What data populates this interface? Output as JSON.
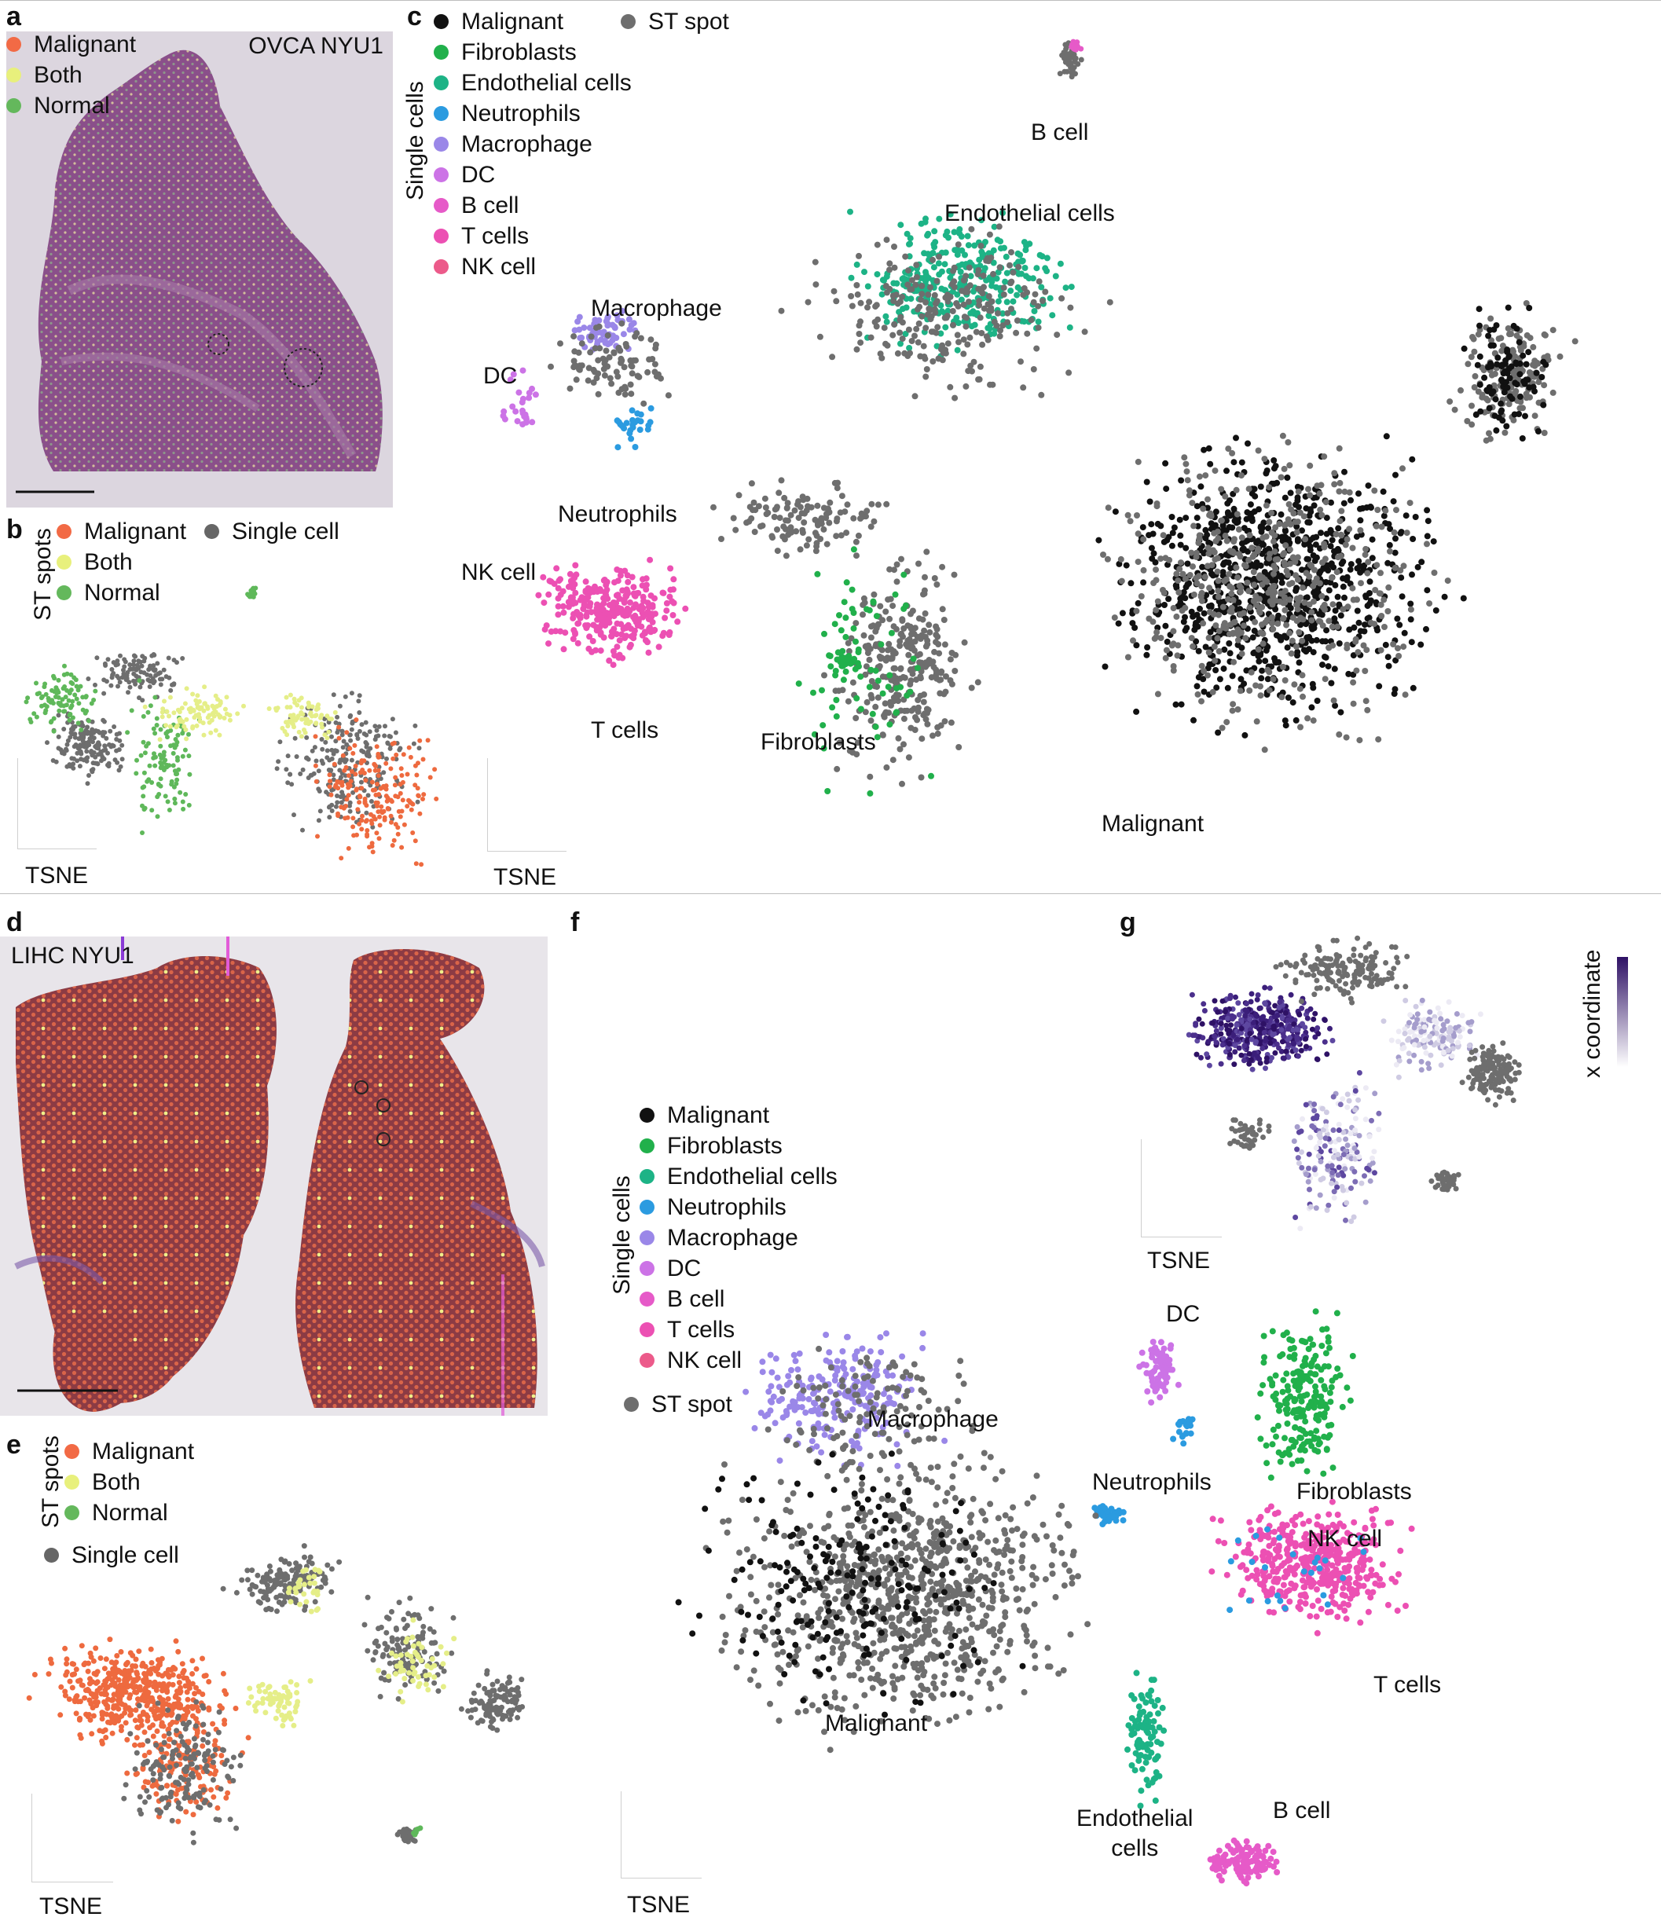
{
  "panels": {
    "a": "a",
    "b": "b",
    "c": "c",
    "d": "d",
    "e": "e",
    "f": "f",
    "g": "g"
  },
  "panel_a": {
    "sample": "OVCA NYU1",
    "legend": [
      {
        "label": "Malignant",
        "color": "#f26a45"
      },
      {
        "label": "Both",
        "color": "#e8f07c"
      },
      {
        "label": "Normal",
        "color": "#64b85c"
      }
    ]
  },
  "panel_b": {
    "group_label": "ST spots",
    "legend": [
      {
        "label": "Malignant",
        "color": "#f26a45"
      },
      {
        "label": "Both",
        "color": "#e8f07c"
      },
      {
        "label": "Normal",
        "color": "#64b85c"
      }
    ],
    "single_cell_label": "Single cell",
    "single_cell_color": "#666666",
    "axis_label": "TSNE"
  },
  "panel_c": {
    "group_label": "Single cells",
    "legend": [
      {
        "label": "Malignant",
        "color": "#111111"
      },
      {
        "label": "Fibroblasts",
        "color": "#21b04b"
      },
      {
        "label": "Endothelial cells",
        "color": "#1db386"
      },
      {
        "label": "Neutrophils",
        "color": "#2b9be0"
      },
      {
        "label": "Macrophage",
        "color": "#9a87e8"
      },
      {
        "label": "DC",
        "color": "#cc73e6"
      },
      {
        "label": "B cell",
        "color": "#e65ac8"
      },
      {
        "label": "T cells",
        "color": "#ec50b3"
      },
      {
        "label": "NK cell",
        "color": "#ec5a8a"
      }
    ],
    "st_spot_label": "ST spot",
    "st_spot_color": "#6e6e6e",
    "axis_label": "TSNE",
    "cluster_labels": {
      "b_cell": "B cell",
      "endothelial": "Endothelial cells",
      "macrophage": "Macrophage",
      "dc": "DC",
      "neutrophils": "Neutrophils",
      "nk_cell": "NK cell",
      "t_cells": "T cells",
      "fibroblasts": "Fibroblasts",
      "malignant": "Malignant"
    }
  },
  "panel_d": {
    "sample": "LIHC NYU1"
  },
  "panel_e": {
    "group_label": "ST spots",
    "legend": [
      {
        "label": "Malignant",
        "color": "#f26a45"
      },
      {
        "label": "Both",
        "color": "#e8f07c"
      },
      {
        "label": "Normal",
        "color": "#64b85c"
      }
    ],
    "single_cell_label": "Single cell",
    "single_cell_color": "#666666",
    "axis_label": "TSNE"
  },
  "panel_f": {
    "group_label": "Single cells",
    "legend": [
      {
        "label": "Malignant",
        "color": "#111111"
      },
      {
        "label": "Fibroblasts",
        "color": "#21b04b"
      },
      {
        "label": "Endothelial cells",
        "color": "#1db386"
      },
      {
        "label": "Neutrophils",
        "color": "#2b9be0"
      },
      {
        "label": "Macrophage",
        "color": "#9a87e8"
      },
      {
        "label": "DC",
        "color": "#cc73e6"
      },
      {
        "label": "B cell",
        "color": "#e65ac8"
      },
      {
        "label": "T cells",
        "color": "#ec50b3"
      },
      {
        "label": "NK cell",
        "color": "#ec5a8a"
      }
    ],
    "st_spot_label": "ST spot",
    "st_spot_color": "#6e6e6e",
    "axis_label": "TSNE",
    "cluster_labels": {
      "dc": "DC",
      "macrophage": "Macrophage",
      "neutrophils": "Neutrophils",
      "fibroblasts": "Fibroblasts",
      "nk_cell": "NK cell",
      "t_cells": "T cells",
      "malignant": "Malignant",
      "endothelial": "Endothelial\ncells",
      "b_cell": "B cell"
    }
  },
  "panel_g": {
    "colorbar_label": "x coordinate",
    "colorbar_colors": [
      "#ffffff",
      "#2e1165"
    ],
    "axis_label": "TSNE"
  }
}
